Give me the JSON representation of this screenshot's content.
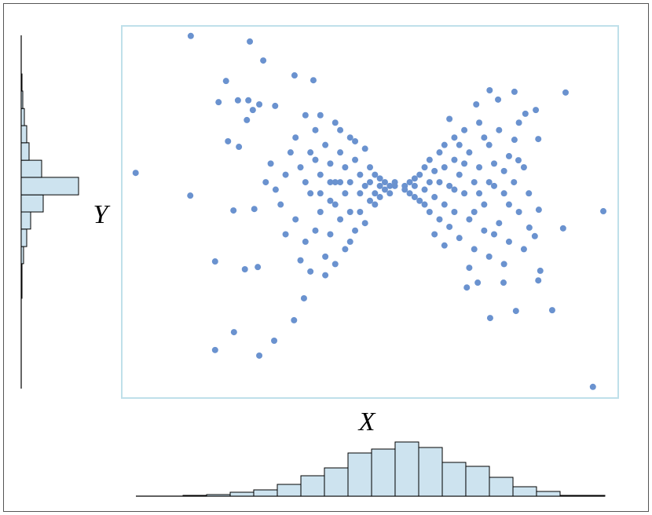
{
  "chart_data": [
    {
      "type": "scatter",
      "x_label": "X",
      "y_label": "Y",
      "color": "#6a92cf",
      "xlim": [
        0,
        100
      ],
      "ylim": [
        0,
        100
      ],
      "x": [
        13.9,
        25.8,
        28.5,
        21.0,
        34.8,
        38.6,
        2.8,
        13.8,
        22.5,
        26.7,
        18.8,
        24.8,
        27.4,
        36.7,
        34.7,
        22.6,
        18.8,
        30.7,
        27.7,
        89.4,
        97.0,
        94.9,
        88.9,
        86.7,
        79.4,
        74.2,
        76.9,
        71.7,
        69.5,
        83.9,
        84.3,
        83.2,
        82.1,
        84.0,
        83.9,
        79.9,
        79.1,
        83.4,
        81.3,
        79.1,
        74.1,
        75.8,
        71.4,
        19.5,
        23.4,
        25.5,
        27.7,
        30.9,
        21.4,
        23.6,
        25.2,
        26.4,
        35,
        36,
        35,
        37,
        38,
        38,
        39,
        39,
        40,
        40,
        41,
        41,
        42,
        42,
        42,
        43,
        43,
        44,
        44,
        45,
        45,
        45,
        46,
        46,
        46,
        47,
        47,
        48,
        48,
        48,
        49,
        49,
        49,
        50,
        50,
        50,
        51,
        51,
        51,
        52,
        52,
        52,
        53,
        53,
        54,
        54,
        55,
        55,
        36,
        37,
        38,
        40,
        41,
        43,
        44,
        33,
        32,
        33,
        34,
        30,
        31,
        29,
        47,
        46,
        44,
        43,
        42,
        40,
        39,
        37,
        57,
        57,
        58,
        58,
        59,
        59,
        59,
        60,
        60,
        61,
        61,
        61,
        62,
        62,
        62,
        63,
        63,
        64,
        64,
        64,
        65,
        65,
        65,
        66,
        66,
        67,
        67,
        67,
        68,
        68,
        69,
        69,
        70,
        70,
        71,
        71,
        72,
        72,
        73,
        73,
        74,
        74,
        75,
        75,
        76,
        76,
        77,
        77,
        78,
        78,
        79,
        80,
        80,
        81,
        81,
        82,
        66,
        70,
        73,
        63,
        68,
        75,
        72,
        77,
        69,
        65,
        74,
        67,
        71,
        78
      ],
      "values": [
        97.3,
        95.8,
        90.7,
        85.2,
        86.7,
        85.4,
        60.5,
        54.4,
        50.4,
        50.8,
        36.7,
        34.6,
        35.2,
        26.8,
        20.9,
        17.7,
        12.9,
        15.4,
        11.4,
        82.1,
        50.2,
        3.0,
        45.6,
        23.6,
        23.4,
        21.5,
        31.0,
        31.0,
        29.7,
        31.6,
        34.2,
        43.5,
        45.8,
        50.6,
        69.6,
        63.9,
        69.4,
        77.4,
        76.4,
        82.3,
        82.7,
        80.2,
        78.9,
        79.5,
        80.0,
        80.0,
        78.9,
        78.5,
        69.0,
        67.5,
        74.7,
        77.4,
        70,
        62,
        48,
        42,
        66,
        55,
        72,
        45,
        60,
        50,
        68,
        38,
        63,
        53,
        44,
        74,
        58,
        48,
        66,
        55,
        40,
        62,
        70,
        50,
        58,
        45,
        64,
        55,
        60,
        50,
        67,
        57,
        47,
        62,
        53,
        58,
        55,
        60,
        52,
        57,
        59,
        54,
        56,
        58,
        57,
        55,
        57,
        58,
        37,
        76,
        34,
        76,
        33,
        36,
        72,
        60,
        52,
        44,
        66,
        63,
        56,
        58,
        69,
        42,
        58,
        52,
        58,
        55,
        64,
        58,
        57,
        56,
        58,
        55,
        59,
        54,
        57,
        60,
        53,
        62,
        56,
        52,
        64,
        58,
        50,
        61,
        54,
        66,
        48,
        58,
        68,
        62,
        52,
        46,
        57,
        70,
        64,
        50,
        60,
        43,
        72,
        55,
        66,
        48,
        58,
        40,
        74,
        62,
        52,
        45,
        68,
        38,
        57,
        63,
        72,
        47,
        55,
        36,
        65,
        42,
        58,
        50,
        74,
        62,
        40,
        55,
        75,
        35,
        70,
        44,
        68,
        44,
        55,
        61,
        63,
        41,
        58,
        56,
        50,
        52
      ]
    },
    {
      "type": "histogram",
      "orientation": "vertical",
      "color": "#cde3ef",
      "ylim": [
        0,
        70
      ],
      "bins": [
        2.85,
        7.59,
        12.34,
        17.09,
        21.84,
        26.58,
        31.33,
        36.08,
        40.82,
        45.57,
        50.32,
        55.06,
        59.81,
        64.56,
        69.3,
        74.05,
        78.8,
        83.54,
        88.29,
        93.04,
        97.31
      ],
      "counts": [
        0,
        0,
        1,
        2,
        5,
        8,
        15,
        26,
        36,
        55,
        60,
        69,
        62,
        43,
        38,
        24,
        12,
        6,
        1,
        1
      ]
    },
    {
      "type": "histogram",
      "orientation": "horizontal",
      "color": "#cde3ef",
      "xlim": [
        0,
        80
      ],
      "bins": [
        26.8,
        31.4,
        36.1,
        40.7,
        45.4,
        50.0,
        54.6,
        59.3,
        63.9,
        68.6,
        73.2,
        77.8,
        82.5,
        87.1
      ],
      "counts": [
        1,
        1,
        3,
        7,
        12,
        28,
        73,
        26,
        10,
        7,
        4,
        2,
        1
      ]
    }
  ]
}
